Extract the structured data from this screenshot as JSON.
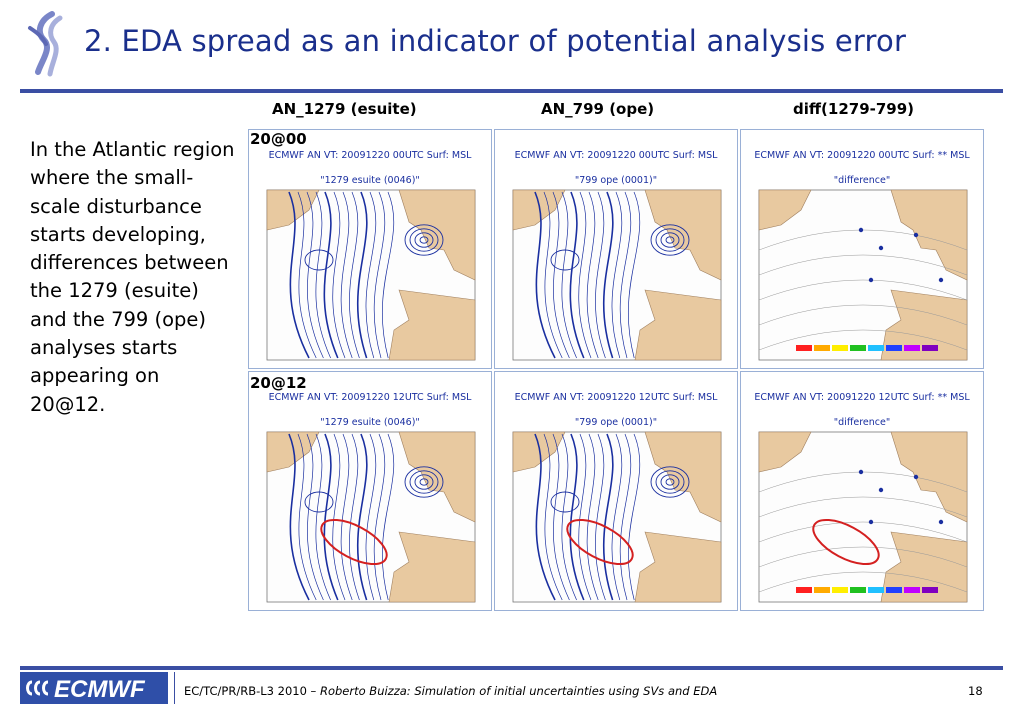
{
  "slide": {
    "title": "2. EDA spread as an indicator of potential analysis error",
    "body_text": "In the Atlantic region where the small-scale disturbance starts developing, differences between the 1279 (esuite) and the 799 (ope) analyses starts appearing on 20@12.",
    "columns": [
      "AN_1279 (esuite)",
      "AN_799 (ope)",
      "diff(1279-799)"
    ],
    "rows": [
      "20@00",
      "20@12"
    ],
    "panels": [
      {
        "head": "ECMWF  AN VT:  20091220 00UTC Surf: MSL",
        "sub": "\"1279 esuite (0046)\"",
        "kind": "contour",
        "circle": false
      },
      {
        "head": "ECMWF  AN VT:  20091220 00UTC Surf: MSL",
        "sub": "\"799 ope (0001)\"",
        "kind": "contour",
        "circle": false
      },
      {
        "head": "ECMWF  AN VT:  20091220 00UTC Surf: ** MSL",
        "sub": "\"difference\"",
        "kind": "diff",
        "circle": false
      },
      {
        "head": "ECMWF  AN VT:  20091220 12UTC Surf: MSL",
        "sub": "\"1279 esuite (0046)\"",
        "kind": "contour",
        "circle": true
      },
      {
        "head": "ECMWF  AN VT:  20091220 12UTC Surf: MSL",
        "sub": "\"799 ope (0001)\"",
        "kind": "contour",
        "circle": true
      },
      {
        "head": "ECMWF  AN VT:  20091220 12UTC Surf: ** MSL",
        "sub": "\"difference\"",
        "kind": "diff",
        "circle": true
      }
    ]
  },
  "footer": {
    "logo_text": "ECMWF",
    "prefix": "EC/TC/PR/RB-L3 2010 – ",
    "italic": "Roberto Buizza: Simulation of initial uncertainties using SVs and EDA",
    "page": "18"
  },
  "colors": {
    "title": "#1a2f8c",
    "rule": "#3a4ea3",
    "contour": "#1a2fa0",
    "land": "#e8c9a0",
    "highlight": "#d42020"
  }
}
